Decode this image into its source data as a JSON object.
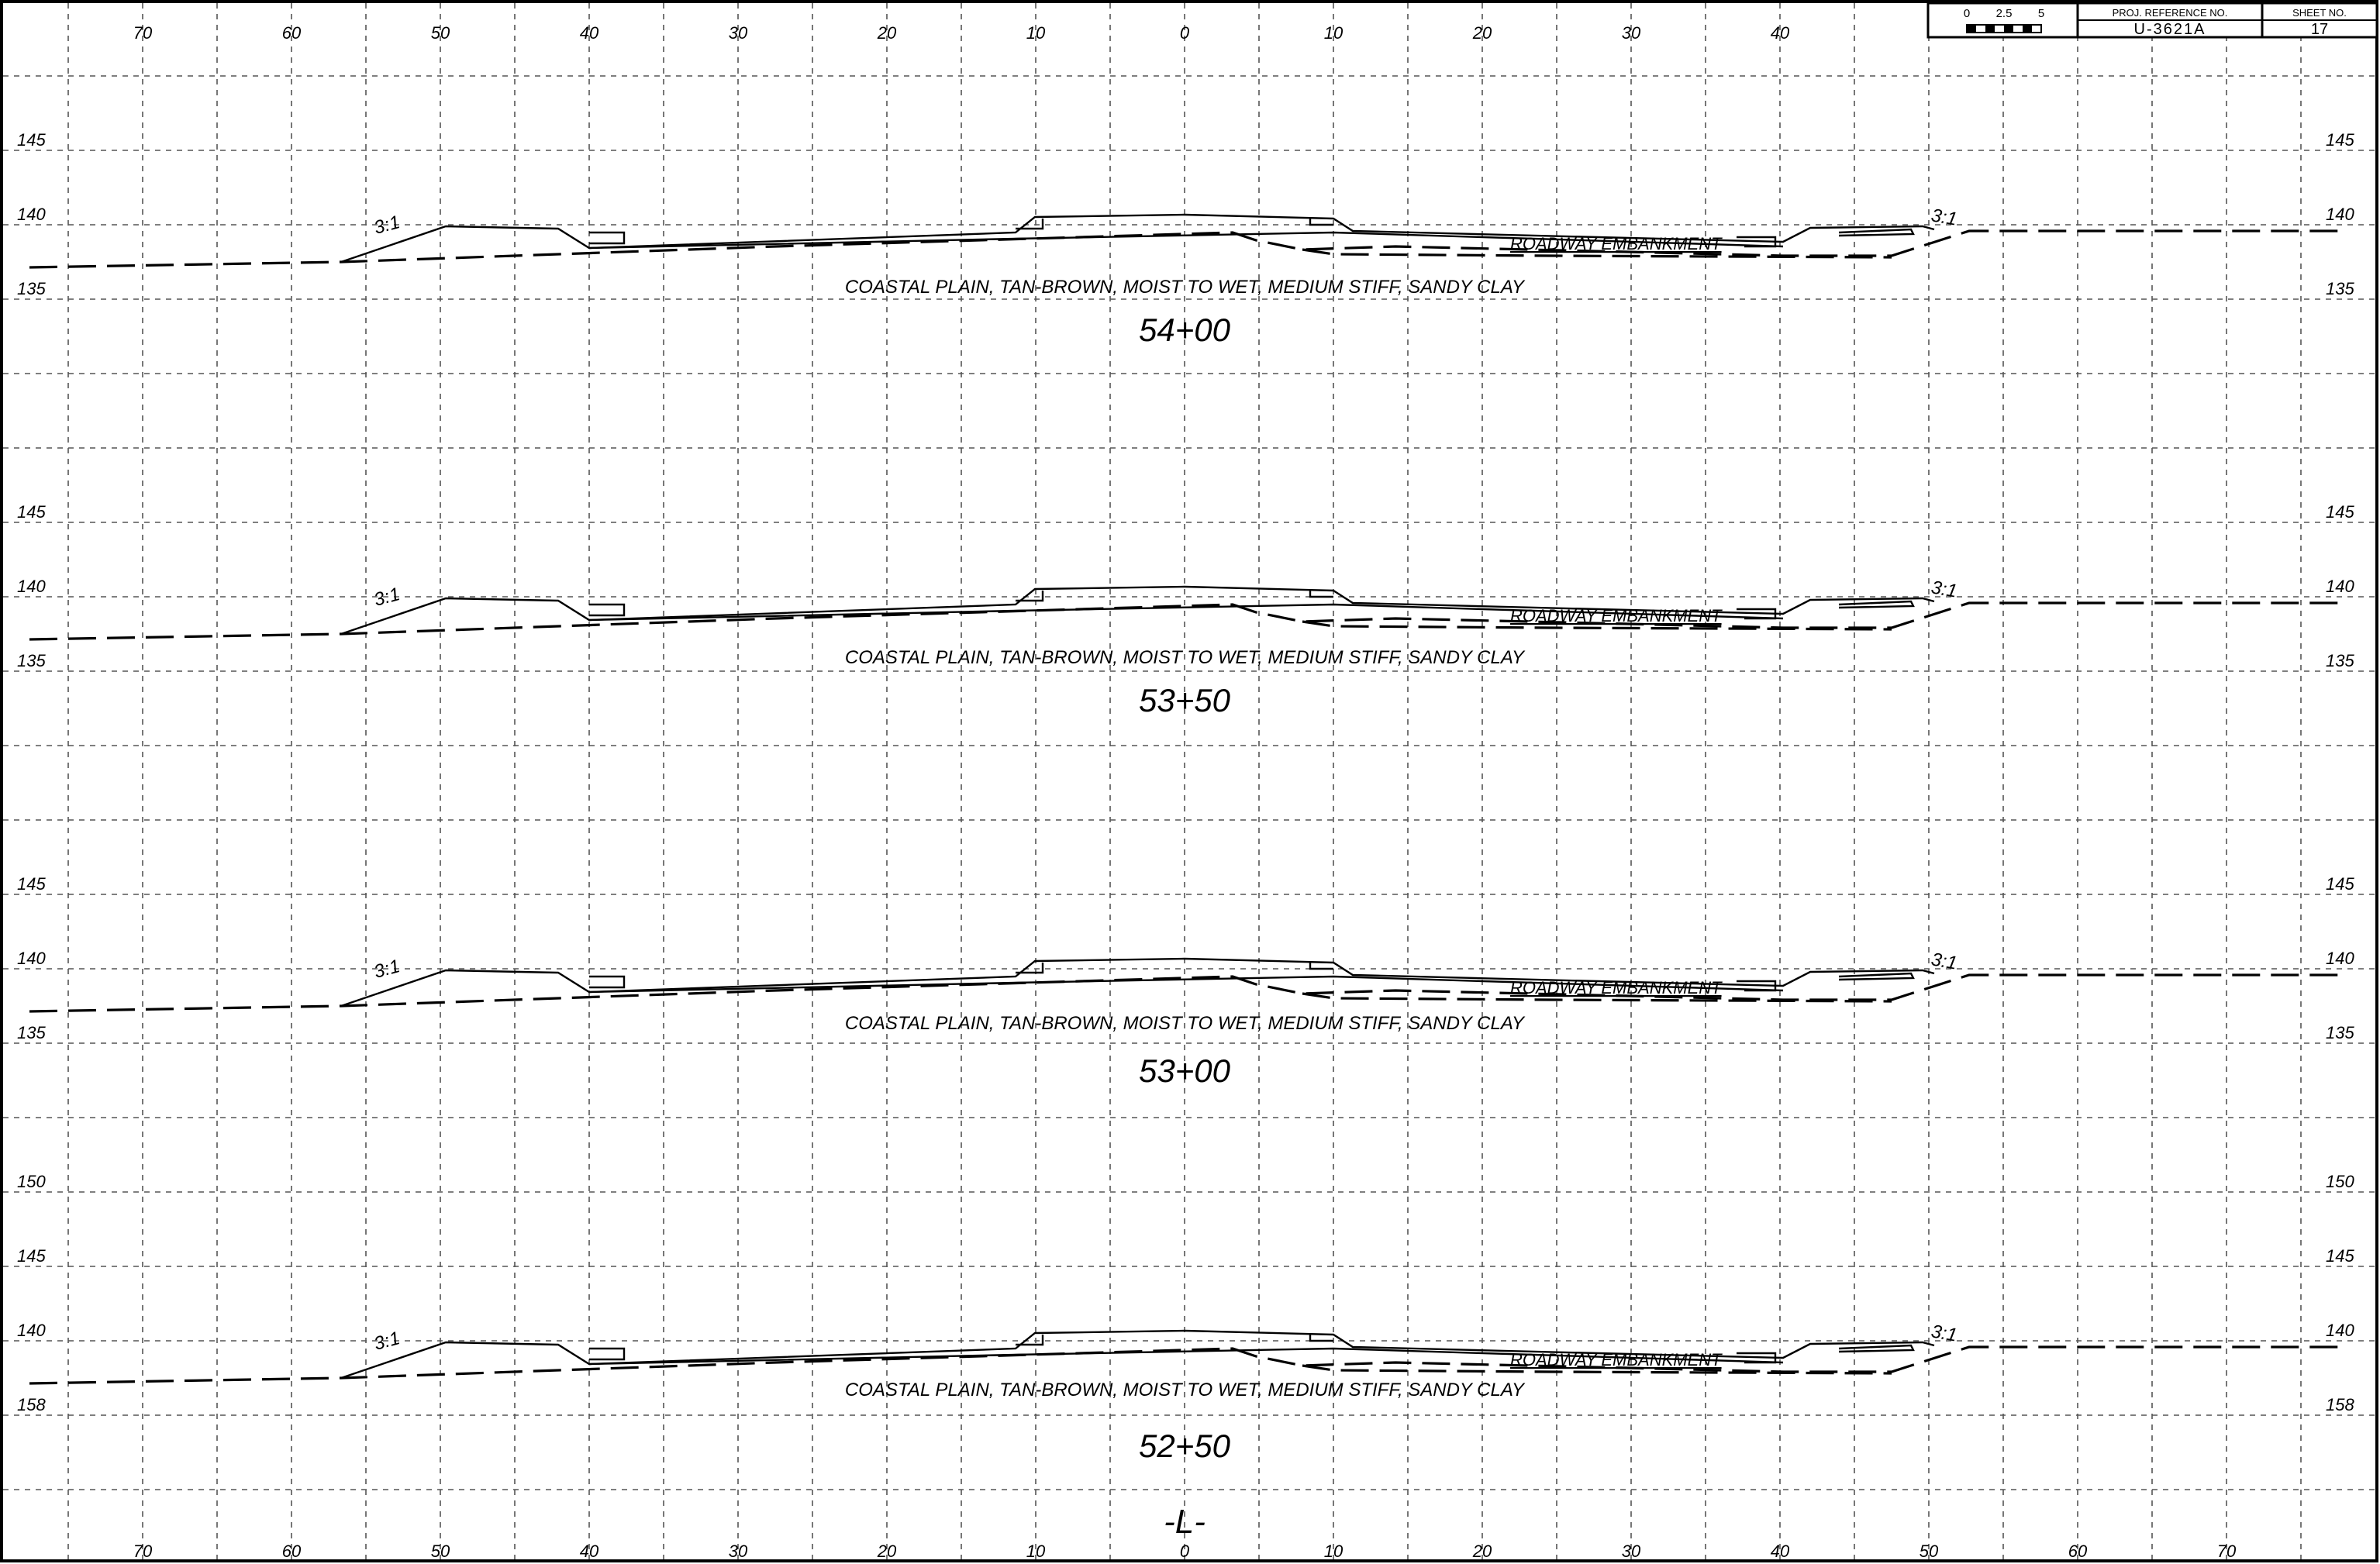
{
  "title_block": {
    "scale_labels": [
      "0",
      "2.5",
      "5"
    ],
    "proj_ref_header": "PROJ. REFERENCE NO.",
    "proj_ref": "U-3621A",
    "sheet_header": "SHEET NO.",
    "sheet_no": "17"
  },
  "offset_labels_top": [
    "70",
    "60",
    "50",
    "40",
    "30",
    "20",
    "10",
    "0",
    "10",
    "20",
    "30",
    "40"
  ],
  "offset_labels_bottom": [
    "70",
    "60",
    "50",
    "40",
    "30",
    "20",
    "10",
    "0",
    "10",
    "20",
    "30",
    "40",
    "50",
    "60",
    "70"
  ],
  "sections": [
    {
      "station": "54+00",
      "elev_labels": [
        "145",
        "140",
        "135"
      ],
      "soil": "COASTAL PLAIN, TAN-BROWN, MOIST TO WET, MEDIUM STIFF, SANDY CLAY",
      "embankment": "ROADWAY EMBANKMENT",
      "slope_left": "3:1",
      "slope_right": "3:1"
    },
    {
      "station": "53+50",
      "elev_labels": [
        "145",
        "140",
        "135"
      ],
      "soil": "COASTAL PLAIN, TAN-BROWN, MOIST TO WET, MEDIUM STIFF, SANDY CLAY",
      "embankment": "ROADWAY EMBANKMENT",
      "slope_left": "3:1",
      "slope_right": "3:1"
    },
    {
      "station": "53+00",
      "elev_labels": [
        "145",
        "140",
        "135"
      ],
      "soil": "COASTAL PLAIN, TAN-BROWN, MOIST TO WET, MEDIUM STIFF, SANDY CLAY",
      "embankment": "ROADWAY EMBANKMENT",
      "slope_left": "3:1",
      "slope_right": "3:1"
    },
    {
      "station": "52+50",
      "elev_labels": [
        "150",
        "145",
        "140",
        "158"
      ],
      "soil": "COASTAL PLAIN, TAN-BROWN, MOIST TO WET, MEDIUM STIFF, SANDY CLAY",
      "embankment": "ROADWAY EMBANKMENT",
      "slope_left": "3:1",
      "slope_right": "3:1"
    }
  ],
  "alignment_label": "-L-"
}
